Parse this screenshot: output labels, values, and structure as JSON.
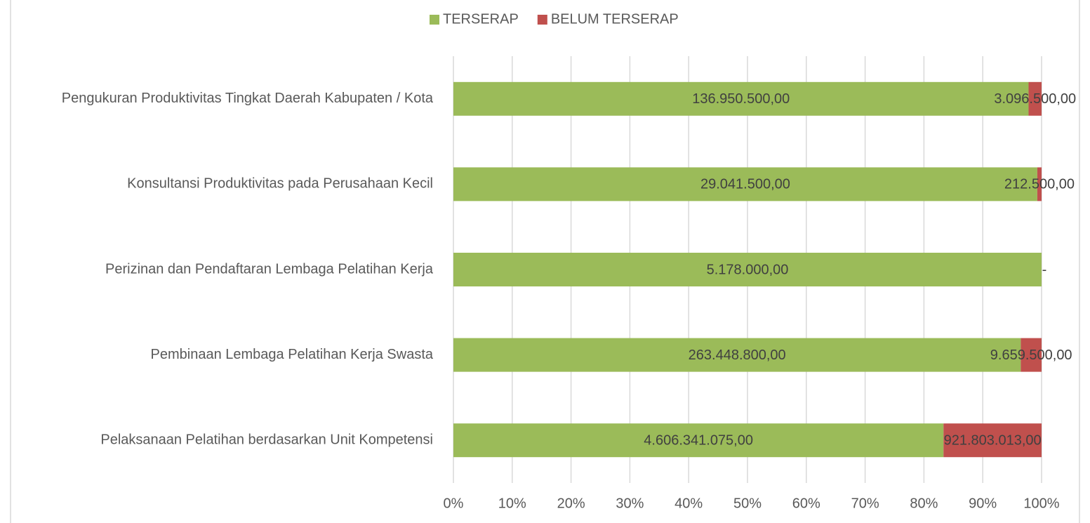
{
  "chart_data": {
    "type": "bar",
    "orientation": "horizontal",
    "stacked": "percent",
    "categories": [
      "Pengukuran Produktivitas Tingkat Daerah Kabupaten / Kota",
      "Konsultansi Produktivitas pada Perusahaan Kecil",
      "Perizinan dan Pendaftaran Lembaga Pelatihan Kerja",
      "Pembinaan Lembaga Pelatihan Kerja Swasta",
      "Pelaksanaan Pelatihan berdasarkan Unit Kompetensi"
    ],
    "series": [
      {
        "name": "TERSERAP",
        "color": "#9bbb59",
        "values": [
          136950500,
          29041500,
          5178000,
          263448800,
          4606341075
        ],
        "value_labels": [
          "136.950.500,00",
          "29.041.500,00",
          "5.178.000,00",
          "263.448.800,00",
          "4.606.341.075,00"
        ]
      },
      {
        "name": "BELUM TERSERAP",
        "color": "#c0504d",
        "values": [
          3096500,
          212500,
          0,
          9659500,
          921803013
        ],
        "value_labels": [
          "3.096.500,00",
          "212.500,00",
          "-",
          "9.659.500,00",
          "921.803.013,00"
        ]
      }
    ],
    "xlim": [
      0,
      100
    ],
    "xticks": [
      {
        "value": 0,
        "label": "0%"
      },
      {
        "value": 10,
        "label": "10%"
      },
      {
        "value": 20,
        "label": "20%"
      },
      {
        "value": 30,
        "label": "30%"
      },
      {
        "value": 40,
        "label": "40%"
      },
      {
        "value": 50,
        "label": "50%"
      },
      {
        "value": 60,
        "label": "60%"
      },
      {
        "value": 70,
        "label": "70%"
      },
      {
        "value": 80,
        "label": "80%"
      },
      {
        "value": 90,
        "label": "90%"
      },
      {
        "value": 100,
        "label": "100%"
      }
    ],
    "grid": true,
    "legend": "top"
  }
}
